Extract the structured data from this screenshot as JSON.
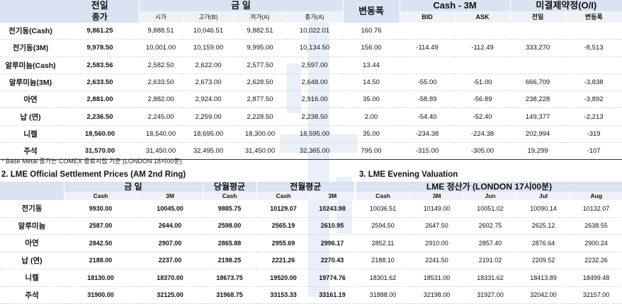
{
  "top_table": {
    "headers": {
      "close_prev_line1": "전일",
      "close_prev_line2": "종가",
      "today_group": "금      일",
      "today_sub": [
        "시가",
        "고가(B)",
        "저가(A)",
        "종가(A)"
      ],
      "change": "변동폭",
      "cash3m_group": "Cash - 3M",
      "cash3m_sub": [
        "BID",
        "ASK"
      ],
      "oi_group": "미결제약정(O/I)",
      "oi_sub": [
        "전일",
        "변동폭"
      ]
    },
    "rows": [
      {
        "name": "전기동(Cash)",
        "prev": "9,861.25",
        "open": "9,888.51",
        "high": "10,046.51",
        "low": "9,882.51",
        "close": "10,022.01",
        "chg": "160.76",
        "bid": "",
        "ask": "",
        "oi": "",
        "oichg": ""
      },
      {
        "name": "전기동(3M)",
        "prev": "9,978.50",
        "open": "10,001.00",
        "high": "10,159.00",
        "low": "9,995.00",
        "close": "10,134.50",
        "chg": "156.00",
        "bid": "-114.49",
        "ask": "-112.49",
        "oi": "333,270",
        "oichg": "-8,513"
      },
      {
        "name": "알루미늄(Cash)",
        "prev": "2,583.56",
        "open": "2,582.50",
        "high": "2,622.00",
        "low": "2,577.50",
        "close": "2,597.00",
        "chg": "13.44",
        "bid": "",
        "ask": "",
        "oi": "",
        "oichg": ""
      },
      {
        "name": "알루미늄(3M)",
        "prev": "2,633.50",
        "open": "2,633.50",
        "high": "2,673.00",
        "low": "2,628.50",
        "close": "2,648.00",
        "chg": "14.50",
        "bid": "-55.00",
        "ask": "-51.00",
        "oi": "666,709",
        "oichg": "-3,838"
      },
      {
        "name": "아연",
        "prev": "2,881.00",
        "open": "2,882.00",
        "high": "2,924.00",
        "low": "2,877.50",
        "close": "2,916.00",
        "chg": "35.00",
        "bid": "-58.89",
        "ask": "-56.89",
        "oi": "238,228",
        "oichg": "-3,892"
      },
      {
        "name": "납 (연)",
        "prev": "2,236.50",
        "open": "2,245.00",
        "high": "2,259.00",
        "low": "2,228.50",
        "close": "2,238.50",
        "chg": "2.00",
        "bid": "-54.40",
        "ask": "-52.40",
        "oi": "149,377",
        "oichg": "-2,213"
      },
      {
        "name": "니켈",
        "prev": "18,560.00",
        "open": "18,540.00",
        "high": "18,695.00",
        "low": "18,300.00",
        "close": "18,595.00",
        "chg": "35.00",
        "bid": "-234.38",
        "ask": "-224.38",
        "oi": "202,994",
        "oichg": "-319"
      },
      {
        "name": "주석",
        "prev": "31,570.00",
        "open": "31,450.00",
        "high": "32,495.00",
        "low": "31,450.00",
        "close": "32,365.00",
        "chg": "795.00",
        "bid": "-315.00",
        "ask": "-305.00",
        "oi": "19,299",
        "oichg": "-107"
      }
    ]
  },
  "note": "* Base Metal 종가는 COMEX 종료시점 기준 (LONDON 18시00분)",
  "section2": {
    "title": "2. LME Official Settlement Prices (AM 2nd Ring)",
    "headers": {
      "today": "금      일",
      "cur_avg": "당월평균",
      "prev_avg": "전월평균",
      "sub": [
        "Cash",
        "3M",
        "Cash",
        "Cash",
        "3M"
      ]
    },
    "rows": [
      {
        "name": "전기동",
        "v": [
          "9930.00",
          "10045.00",
          "9885.75",
          "10129.07",
          "10243.98"
        ]
      },
      {
        "name": "알루미늄",
        "v": [
          "2587.00",
          "2644.00",
          "2598.00",
          "2565.19",
          "2610.95"
        ]
      },
      {
        "name": "아연",
        "v": [
          "2842.50",
          "2907.00",
          "2865.88",
          "2955.69",
          "2996.17"
        ]
      },
      {
        "name": "납 (연)",
        "v": [
          "2188.00",
          "2237.00",
          "2198.25",
          "2221.26",
          "2270.43"
        ]
      },
      {
        "name": "니켈",
        "v": [
          "18130.00",
          "18370.00",
          "18673.75",
          "19520.00",
          "19774.76"
        ]
      },
      {
        "name": "주석",
        "v": [
          "31900.00",
          "32125.00",
          "31968.75",
          "33153.33",
          "33161.19"
        ]
      }
    ]
  },
  "section3": {
    "title": "3. LME Evening Valuation",
    "headers": {
      "group": "LME 정산가 (LONDON 17시00분)",
      "sub": [
        "Cash",
        "3M",
        "Jun",
        "Jul",
        "Aug"
      ]
    },
    "rows": [
      {
        "v": [
          "10036.51",
          "10149.00",
          "10051.02",
          "10090.14",
          "10132.07"
        ]
      },
      {
        "v": [
          "2594.50",
          "2647.50",
          "2602.75",
          "2625.12",
          "2638.55"
        ]
      },
      {
        "v": [
          "2852.11",
          "2910.00",
          "2857.40",
          "2876.64",
          "2900.24"
        ]
      },
      {
        "v": [
          "2188.10",
          "2241.50",
          "2191.02",
          "2209.52",
          "2232.26"
        ]
      },
      {
        "v": [
          "18301.62",
          "18531.00",
          "18331.62",
          "18413.89",
          "18499.48"
        ]
      },
      {
        "v": [
          "31888.00",
          "32198.00",
          "31927.00",
          "32042.00",
          "32157.00"
        ]
      }
    ]
  }
}
